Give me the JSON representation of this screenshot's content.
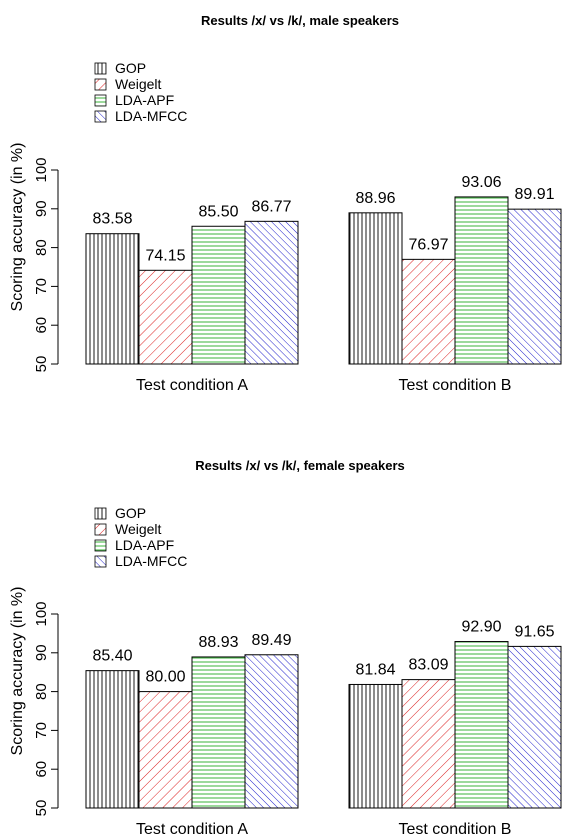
{
  "chart_data": [
    {
      "type": "bar",
      "title": "Results /x/ vs /k/, male speakers",
      "ylabel": "Scoring accuracy (in %)",
      "xlabel": "",
      "ylim": [
        50,
        100
      ],
      "yticks": [
        50,
        60,
        70,
        80,
        90,
        100
      ],
      "categories": [
        "Test condition A",
        "Test condition B"
      ],
      "series": [
        {
          "name": "GOP",
          "values": [
            83.58,
            88.96
          ],
          "labels": [
            "83.58",
            "88.96"
          ],
          "pattern": "vertical",
          "color": "#000000"
        },
        {
          "name": "Weigelt",
          "values": [
            74.15,
            76.97
          ],
          "labels": [
            "74.15",
            "76.97"
          ],
          "pattern": "diag-up",
          "color": "#dd2222"
        },
        {
          "name": "LDA-APF",
          "values": [
            85.5,
            93.06
          ],
          "labels": [
            "85.50",
            "93.06"
          ],
          "pattern": "horizontal",
          "color": "#22aa22"
        },
        {
          "name": "LDA-MFCC",
          "values": [
            86.77,
            89.91
          ],
          "labels": [
            "86.77",
            "89.91"
          ],
          "pattern": "diag-down",
          "color": "#2222cc"
        }
      ],
      "legend": "top-left",
      "grid": false
    },
    {
      "type": "bar",
      "title": "Results /x/ vs /k/, female speakers",
      "ylabel": "Scoring accuracy (in %)",
      "xlabel": "",
      "ylim": [
        50,
        100
      ],
      "yticks": [
        50,
        60,
        70,
        80,
        90,
        100
      ],
      "categories": [
        "Test condition A",
        "Test condition B"
      ],
      "series": [
        {
          "name": "GOP",
          "values": [
            85.4,
            81.84
          ],
          "labels": [
            "85.40",
            "81.84"
          ],
          "pattern": "vertical",
          "color": "#000000"
        },
        {
          "name": "Weigelt",
          "values": [
            80.0,
            83.09
          ],
          "labels": [
            "80.00",
            "83.09"
          ],
          "pattern": "diag-up",
          "color": "#dd2222"
        },
        {
          "name": "LDA-APF",
          "values": [
            88.93,
            92.9
          ],
          "labels": [
            "88.93",
            "92.90"
          ],
          "pattern": "horizontal",
          "color": "#22aa22"
        },
        {
          "name": "LDA-MFCC",
          "values": [
            89.49,
            91.65
          ],
          "labels": [
            "89.49",
            "91.65"
          ],
          "pattern": "diag-down",
          "color": "#2222cc"
        }
      ],
      "legend": "top-left",
      "grid": false
    }
  ]
}
